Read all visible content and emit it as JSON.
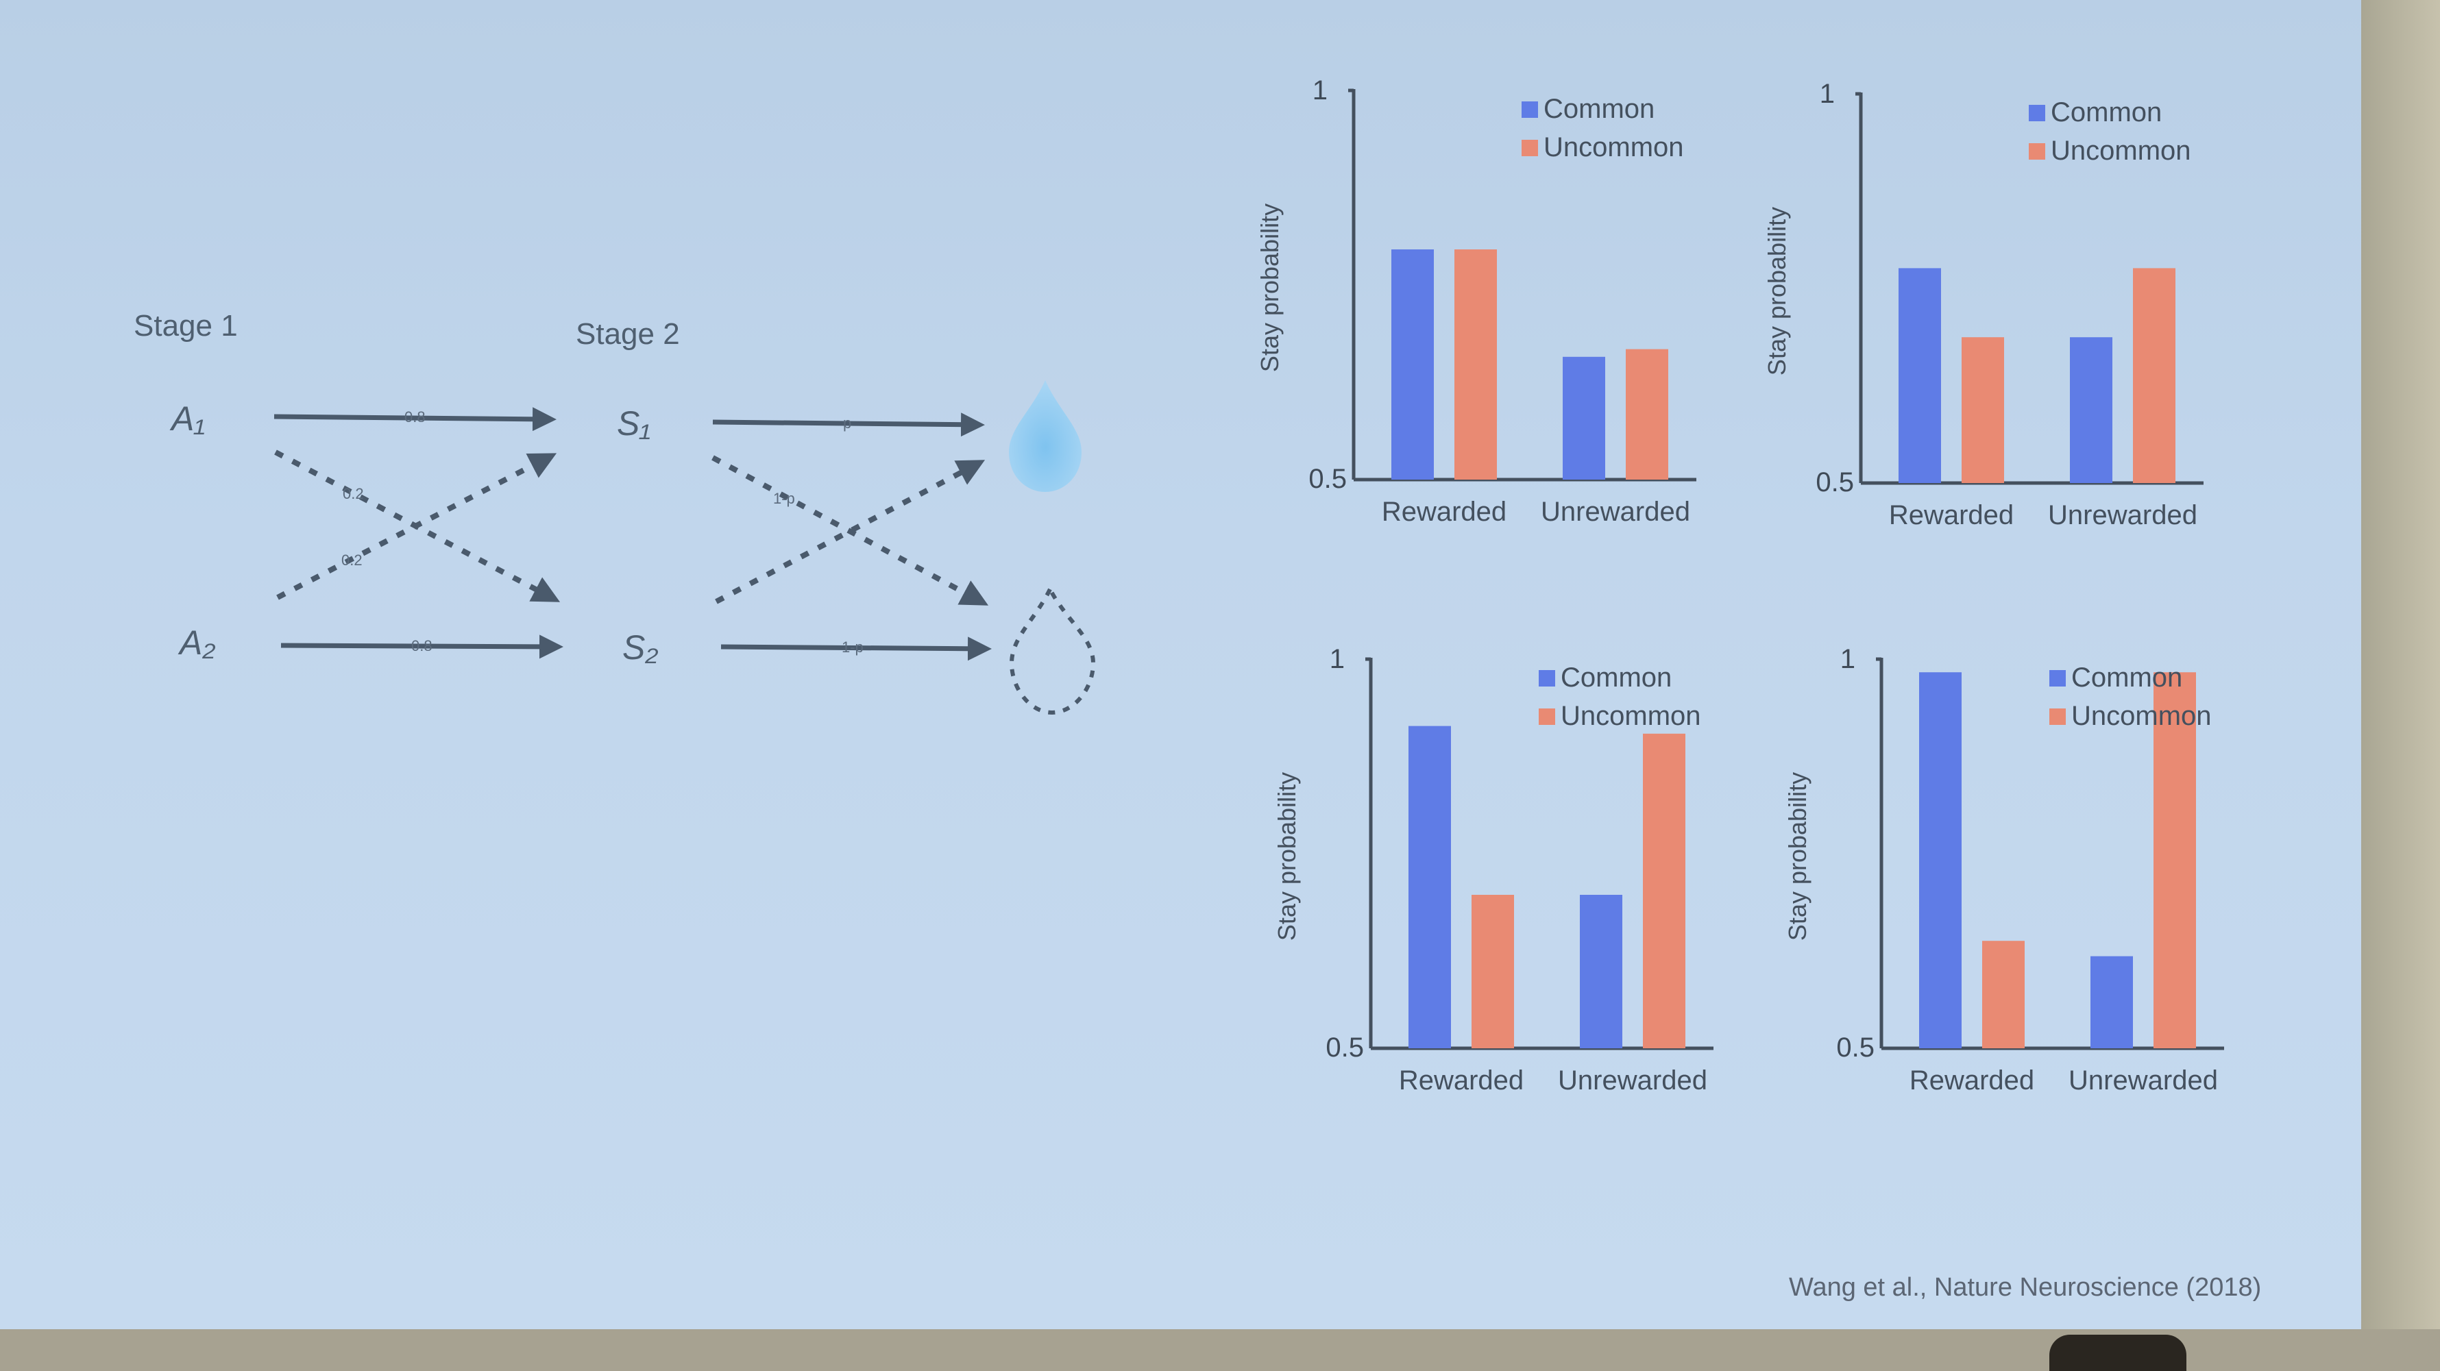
{
  "diagram": {
    "stage1_label": "Stage 1",
    "stage2_label": "Stage 2",
    "nodes": {
      "a1": "A₁",
      "a2": "A₂",
      "s1": "S₁",
      "s2": "S₂"
    },
    "stage1_probs": {
      "a1_s1": "0.8",
      "a1_s2": "0.2",
      "a2_s1": "0.2",
      "a2_s2": "0.8"
    },
    "stage2_probs": {
      "s1_reward": "p",
      "s1_noreward": "1-p",
      "s2_noreward": "1-p"
    }
  },
  "citation": "Wang et al., Nature Neuroscience (2018)",
  "colors": {
    "common": "#5f7ce6",
    "uncommon": "#e98a73",
    "axis": "#44505e"
  },
  "chart_data": [
    {
      "type": "bar",
      "categories": [
        "Rewarded",
        "Unrewarded"
      ],
      "series": [
        {
          "name": "Common",
          "values": [
            0.8,
            0.66
          ]
        },
        {
          "name": "Uncommon",
          "values": [
            0.8,
            0.67
          ]
        }
      ],
      "ylabel": "Stay probability",
      "ylim": [
        0.5,
        1
      ],
      "yticks": [
        "0.5",
        "1"
      ],
      "legend": "top-right"
    },
    {
      "type": "bar",
      "categories": [
        "Rewarded",
        "Unrewarded"
      ],
      "series": [
        {
          "name": "Common",
          "values": [
            0.78,
            0.69
          ]
        },
        {
          "name": "Uncommon",
          "values": [
            0.69,
            0.78
          ]
        }
      ],
      "ylabel": "Stay probability",
      "ylim": [
        0.5,
        1
      ],
      "yticks": [
        "0.5",
        "1"
      ],
      "legend": "top-right"
    },
    {
      "type": "bar",
      "categories": [
        "Rewarded",
        "Unrewarded"
      ],
      "series": [
        {
          "name": "Common",
          "values": [
            0.92,
            0.7
          ]
        },
        {
          "name": "Uncommon",
          "values": [
            0.7,
            0.91
          ]
        }
      ],
      "ylabel": "Stay probability",
      "ylim": [
        0.5,
        1
      ],
      "yticks": [
        "0.5",
        "1"
      ],
      "legend": "top-right"
    },
    {
      "type": "bar",
      "categories": [
        "Rewarded",
        "Unrewarded"
      ],
      "series": [
        {
          "name": "Common",
          "values": [
            0.99,
            0.62
          ]
        },
        {
          "name": "Uncommon",
          "values": [
            0.64,
            0.99
          ]
        }
      ],
      "ylabel": "Stay probability",
      "ylim": [
        0.5,
        1
      ],
      "yticks": [
        "0.5",
        "1"
      ],
      "legend": "top-right"
    }
  ]
}
